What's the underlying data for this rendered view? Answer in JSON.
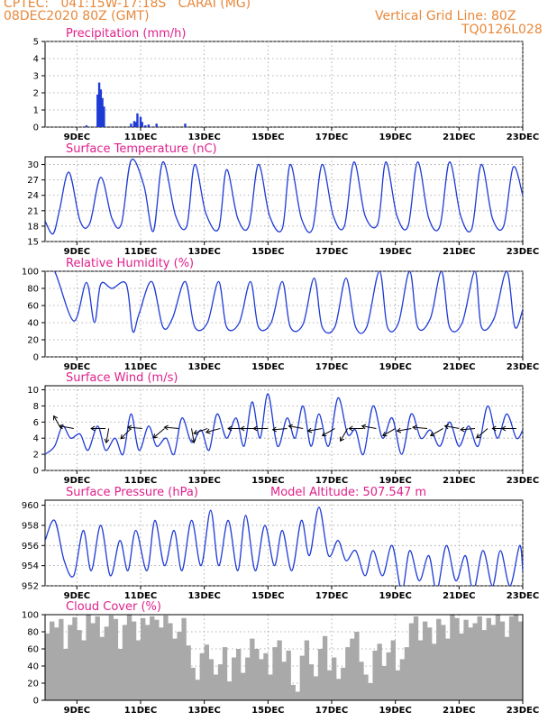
{
  "header": {
    "line1": "CPTEC:   041:15W-17:18S   CARAI (MG)",
    "line2": "08DEC2020 80Z (GMT)",
    "right1": "Vertical Grid Line: 80Z",
    "right2": "TQ0126L028"
  },
  "colors": {
    "line": "#1f3bd6",
    "label": "#e0208c",
    "header": "#e8883a",
    "cloud": "#a9a9a9",
    "grid": "#9a9a9a"
  },
  "x_ticks": [
    "9DEC",
    "11DEC",
    "13DEC",
    "15DEC",
    "17DEC",
    "19DEC",
    "21DEC",
    "23DEC"
  ],
  "model_altitude": "Model Altitude: 507.547 m",
  "chart_data": [
    {
      "type": "bar",
      "title": "Precipitation (mm/h)",
      "ylim": [
        0,
        5
      ],
      "yticks": [
        0,
        1,
        2,
        3,
        4,
        5
      ],
      "x_range_days": [
        8.0,
        23.0
      ],
      "x": [
        9.3,
        9.65,
        9.7,
        9.75,
        9.8,
        9.85,
        10.7,
        10.8,
        10.85,
        10.9,
        11.0,
        11.05,
        11.15,
        11.25,
        11.5,
        12.4
      ],
      "values": [
        0.1,
        1.9,
        2.6,
        2.2,
        1.7,
        1.2,
        0.2,
        0.35,
        0.3,
        0.8,
        0.6,
        0.3,
        0.1,
        0.15,
        0.2,
        0.2
      ]
    },
    {
      "type": "line",
      "title": "Surface Temperature (nC)",
      "ylim": [
        15,
        31.5
      ],
      "yticks": [
        15,
        18,
        21,
        24,
        27,
        30
      ],
      "x": [
        8.0,
        8.25,
        8.45,
        8.75,
        9.1,
        9.4,
        9.75,
        10.1,
        10.4,
        10.7,
        11.1,
        11.4,
        11.7,
        12.1,
        12.45,
        12.7,
        13.05,
        13.45,
        13.7,
        14.05,
        14.4,
        14.7,
        15.05,
        15.45,
        15.7,
        16.05,
        16.4,
        16.7,
        17.05,
        17.4,
        17.7,
        18.05,
        18.45,
        18.7,
        19.05,
        19.4,
        19.7,
        20.05,
        20.4,
        20.7,
        21.05,
        21.4,
        21.7,
        22.05,
        22.4,
        22.7,
        23.0
      ],
      "values": [
        19,
        16.5,
        21,
        28.5,
        19,
        18.5,
        27.5,
        19.5,
        18.5,
        30.8,
        26,
        17,
        30.5,
        20,
        18,
        30,
        20.5,
        17.5,
        29,
        19.5,
        18,
        30,
        20,
        17.5,
        30,
        19.5,
        17.5,
        30,
        20,
        18,
        30.5,
        20,
        18.5,
        30.5,
        20,
        18,
        30.5,
        19.5,
        18,
        30.5,
        20,
        17.5,
        30,
        19.5,
        18,
        29.5,
        24
      ]
    },
    {
      "type": "line",
      "title": "Relative Humidity (%)",
      "ylim": [
        0,
        100
      ],
      "yticks": [
        0,
        20,
        40,
        60,
        80,
        100
      ],
      "x": [
        8.0,
        8.3,
        8.9,
        9.3,
        9.55,
        9.75,
        10.1,
        10.55,
        10.75,
        10.95,
        11.35,
        11.7,
        12.0,
        12.4,
        12.7,
        13.1,
        13.45,
        13.7,
        14.1,
        14.45,
        14.7,
        15.1,
        15.45,
        15.7,
        16.1,
        16.45,
        16.7,
        17.1,
        17.45,
        17.75,
        18.1,
        18.5,
        18.75,
        19.1,
        19.45,
        19.7,
        20.1,
        20.45,
        20.7,
        21.1,
        21.5,
        21.7,
        22.1,
        22.5,
        22.75,
        23.0
      ],
      "values": [
        100,
        100,
        42,
        87,
        40,
        85,
        80,
        85,
        30,
        50,
        88,
        35,
        45,
        88,
        35,
        40,
        88,
        35,
        40,
        88,
        35,
        40,
        88,
        35,
        38,
        92,
        35,
        35,
        92,
        35,
        35,
        100,
        35,
        40,
        100,
        35,
        45,
        100,
        35,
        40,
        100,
        35,
        45,
        100,
        35,
        55
      ]
    },
    {
      "type": "line",
      "title": "Surface Wind (m/s)",
      "ylim": [
        0,
        10.5
      ],
      "yticks": [
        0,
        2,
        4,
        6,
        8,
        10
      ],
      "x": [
        8.0,
        8.3,
        8.55,
        8.8,
        9.1,
        9.35,
        9.65,
        9.9,
        10.2,
        10.45,
        10.7,
        10.95,
        11.25,
        11.5,
        11.8,
        12.05,
        12.3,
        12.6,
        12.9,
        13.15,
        13.4,
        13.7,
        14.0,
        14.25,
        14.5,
        14.75,
        15.0,
        15.3,
        15.6,
        15.85,
        16.1,
        16.35,
        16.6,
        16.9,
        17.2,
        17.5,
        17.75,
        18.0,
        18.3,
        18.6,
        18.9,
        19.2,
        19.5,
        19.8,
        20.1,
        20.4,
        20.7,
        21.0,
        21.3,
        21.6,
        21.9,
        22.2,
        22.5,
        22.8,
        23.0
      ],
      "values": [
        2,
        3,
        5.5,
        4,
        4.5,
        2.5,
        5.5,
        2.5,
        4,
        2,
        7,
        2.5,
        5.5,
        3,
        4,
        2,
        6.5,
        3.5,
        5,
        2.5,
        7,
        4,
        6.5,
        3,
        8.5,
        4,
        9.5,
        3,
        6.5,
        4,
        8,
        3,
        7,
        3,
        9,
        4.5,
        5,
        2,
        8,
        4,
        6.5,
        2,
        7,
        4,
        5,
        3,
        6,
        3,
        5.5,
        3,
        8,
        4,
        7,
        4,
        5
      ]
    },
    {
      "type": "line",
      "title": "Surface Pressure (hPa)",
      "ylim": [
        952,
        960.5
      ],
      "yticks": [
        952,
        954,
        956,
        958,
        960
      ],
      "x": [
        8.0,
        8.3,
        8.6,
        8.9,
        9.2,
        9.45,
        9.75,
        10.05,
        10.35,
        10.6,
        10.85,
        11.2,
        11.45,
        11.75,
        12.05,
        12.3,
        12.6,
        12.9,
        13.2,
        13.45,
        13.75,
        14.05,
        14.3,
        14.6,
        14.9,
        15.2,
        15.45,
        15.75,
        16.05,
        16.3,
        16.6,
        16.9,
        17.2,
        17.45,
        17.75,
        18.05,
        18.3,
        18.6,
        18.9,
        19.2,
        19.45,
        19.75,
        20.05,
        20.3,
        20.6,
        20.9,
        21.2,
        21.45,
        21.75,
        22.05,
        22.3,
        22.6,
        22.9,
        23.0
      ],
      "values": [
        956.5,
        958.5,
        954.5,
        953,
        957.5,
        953.5,
        958,
        953,
        956.5,
        953.5,
        957.5,
        953.5,
        958.5,
        954,
        957.5,
        953.5,
        958.5,
        954,
        959.5,
        954,
        958.5,
        953.5,
        959,
        953.5,
        958,
        954,
        957.5,
        953.5,
        958.5,
        955,
        959.8,
        955,
        956.5,
        954.5,
        955.5,
        953,
        955.5,
        953,
        956,
        951.5,
        955.5,
        952.5,
        955,
        951.5,
        956,
        952.5,
        955,
        951.5,
        955.5,
        952,
        955.5,
        952,
        956,
        953.5
      ]
    },
    {
      "type": "bar",
      "title": "Cloud Cover (%)",
      "ylim": [
        0,
        100
      ],
      "yticks": [
        0,
        20,
        40,
        60,
        80,
        100
      ],
      "x_range_days": [
        8.0,
        23.0
      ],
      "values": [
        78,
        92,
        85,
        95,
        60,
        88,
        97,
        82,
        70,
        100,
        90,
        98,
        74,
        86,
        99,
        95,
        60,
        88,
        100,
        92,
        70,
        96,
        88,
        98,
        94,
        85,
        99,
        90,
        72,
        80,
        96,
        64,
        38,
        24,
        55,
        65,
        48,
        30,
        42,
        62,
        22,
        50,
        60,
        32,
        50,
        72,
        60,
        48,
        55,
        30,
        62,
        70,
        45,
        58,
        18,
        10,
        52,
        70,
        42,
        28,
        60,
        75,
        35,
        50,
        25,
        38,
        62,
        72,
        80,
        45,
        30,
        20,
        58,
        66,
        40,
        56,
        70,
        35,
        48,
        62,
        90,
        98,
        70,
        92,
        85,
        66,
        95,
        88,
        72,
        100,
        96,
        78,
        94,
        85,
        90,
        98,
        82,
        96,
        88,
        100,
        92,
        74,
        98,
        100,
        92
      ]
    }
  ]
}
